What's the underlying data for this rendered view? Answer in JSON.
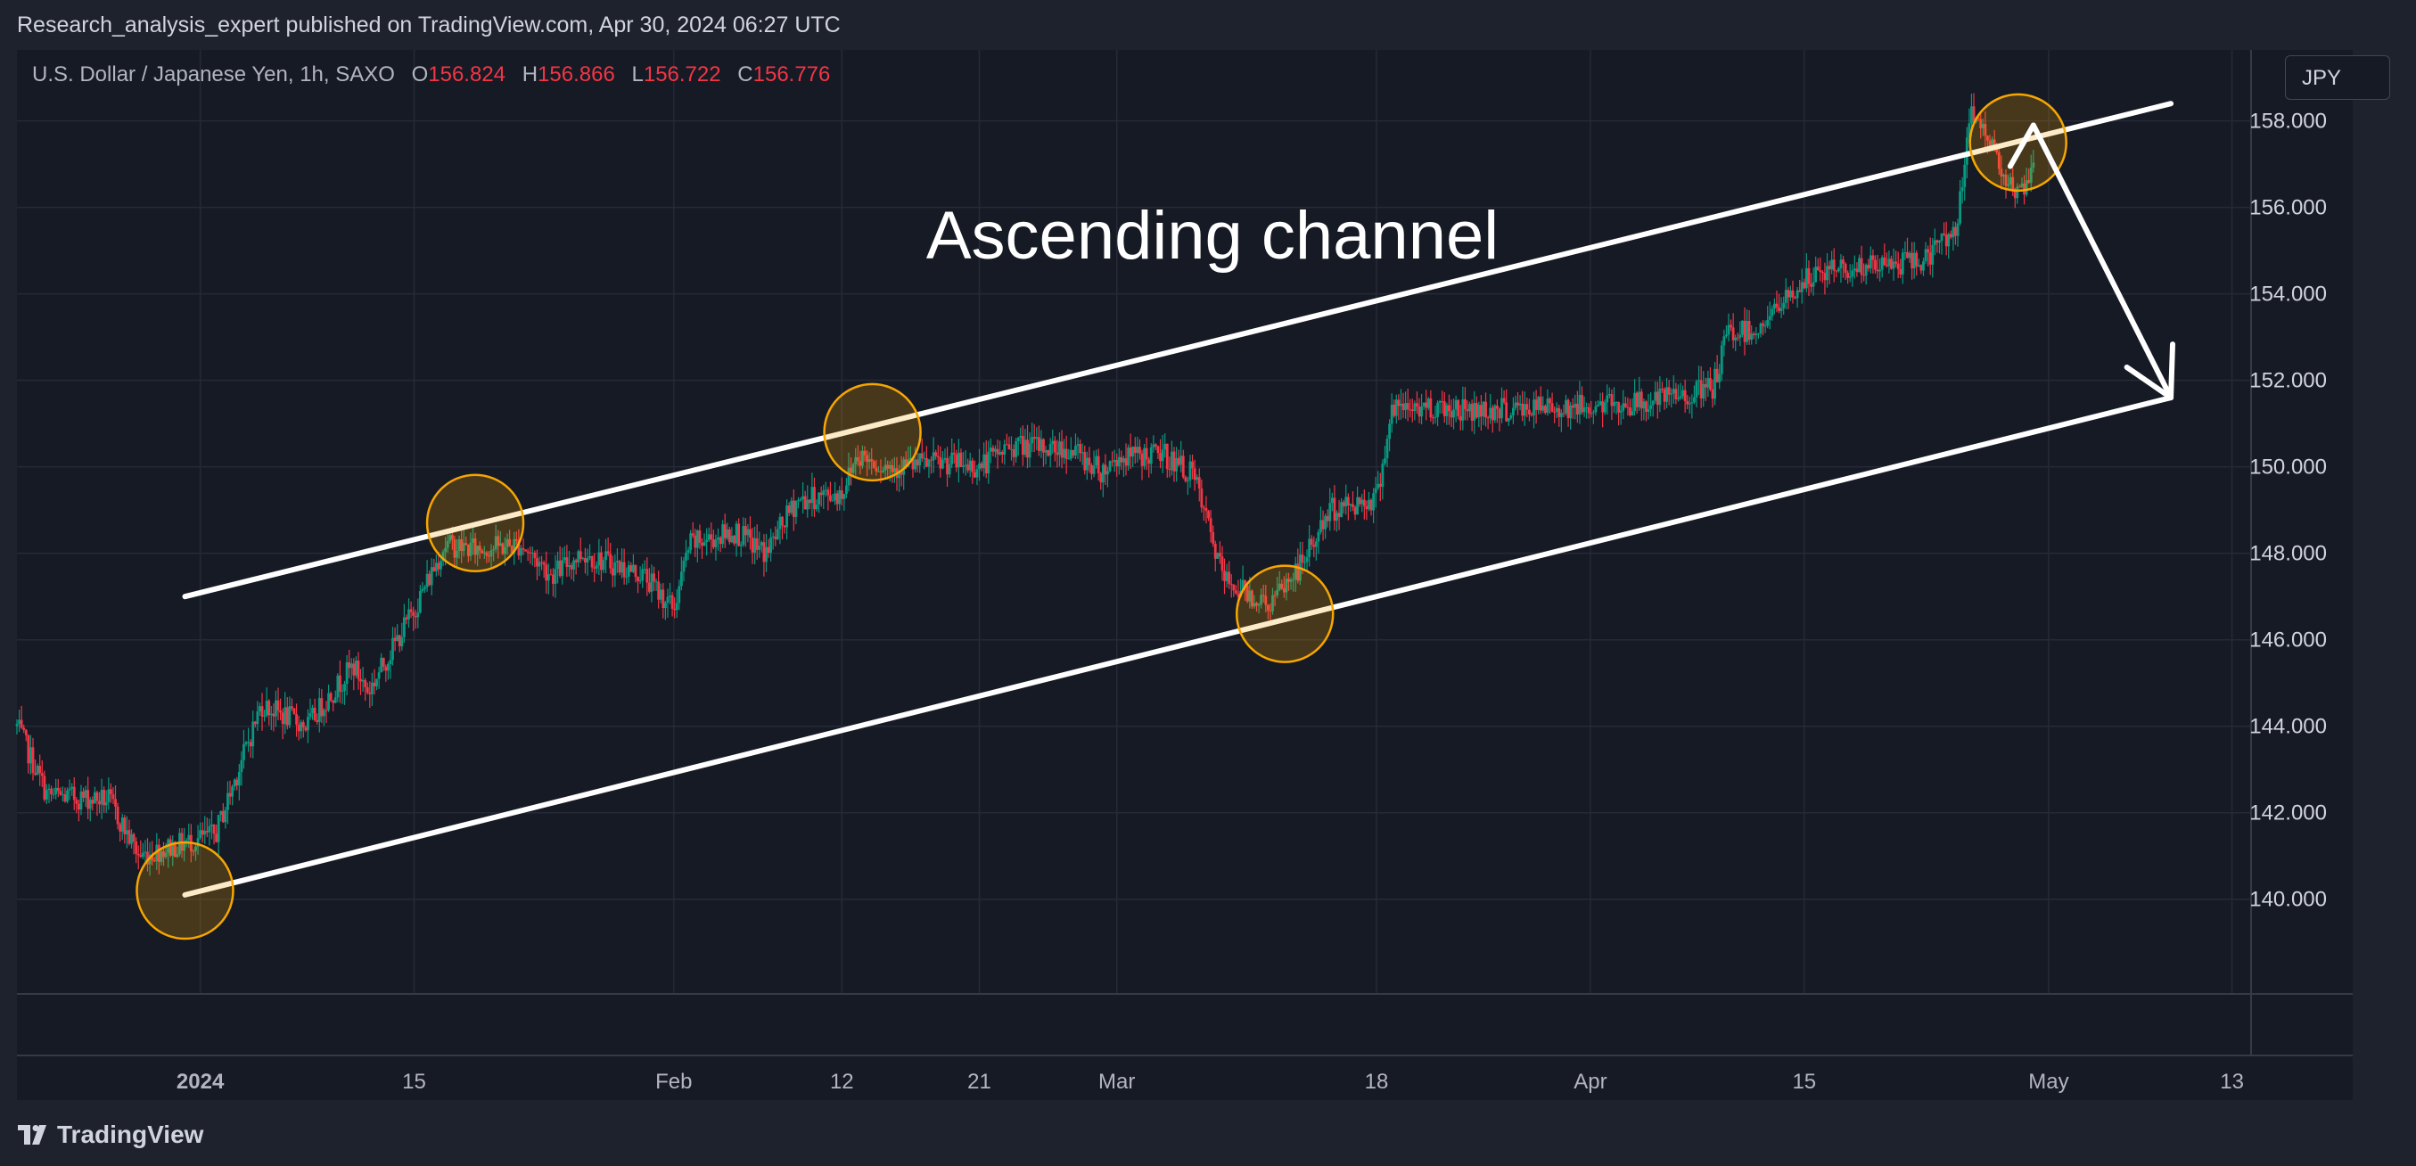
{
  "header": {
    "published_text": "Research_analysis_expert published on TradingView.com, Apr 30, 2024 06:27 UTC"
  },
  "legend": {
    "symbol": "U.S. Dollar / Japanese Yen, 1h, SAXO",
    "open_label": "O",
    "open": "156.824",
    "high_label": "H",
    "high": "156.866",
    "low_label": "L",
    "low": "156.722",
    "close_label": "C",
    "close": "156.776"
  },
  "currency_button": {
    "label": "JPY"
  },
  "footer": {
    "brand": "TradingView",
    "logo_icon": "tradingview-logo-icon"
  },
  "colors": {
    "background": "#161a25",
    "up": "#089981",
    "down": "#f23645",
    "annotation": "#ffffff",
    "circle": "#f7a600"
  },
  "chart_data": {
    "type": "candlestick",
    "title": "",
    "annotation_text": "Ascending channel",
    "y_ticks": [
      "140.000",
      "142.000",
      "144.000",
      "146.000",
      "148.000",
      "150.000",
      "152.000",
      "154.000",
      "156.000",
      "158.000"
    ],
    "y_range": [
      137.5,
      159.6
    ],
    "x_ticks": [
      {
        "label": "2024",
        "date": "2024-01-01"
      },
      {
        "label": "15",
        "date": "2024-01-15"
      },
      {
        "label": "Feb",
        "date": "2024-02-01"
      },
      {
        "label": "12",
        "date": "2024-02-12"
      },
      {
        "label": "21",
        "date": "2024-02-21"
      },
      {
        "label": "Mar",
        "date": "2024-03-01"
      },
      {
        "label": "18",
        "date": "2024-03-18"
      },
      {
        "label": "Apr",
        "date": "2024-04-01"
      },
      {
        "label": "15",
        "date": "2024-04-15"
      },
      {
        "label": "May",
        "date": "2024-05-01"
      },
      {
        "label": "13",
        "date": "2024-05-13"
      }
    ],
    "price_path": [
      [
        "2023-12-20",
        144.0
      ],
      [
        "2023-12-22",
        142.4
      ],
      [
        "2023-12-26",
        142.3
      ],
      [
        "2023-12-28",
        141.0
      ],
      [
        "2024-01-02",
        141.5
      ],
      [
        "2024-01-04",
        143.5
      ],
      [
        "2024-01-05",
        144.5
      ],
      [
        "2024-01-08",
        144.0
      ],
      [
        "2024-01-09",
        144.5
      ],
      [
        "2024-01-11",
        145.4
      ],
      [
        "2024-01-12",
        144.8
      ],
      [
        "2024-01-15",
        146.7
      ],
      [
        "2024-01-17",
        148.2
      ],
      [
        "2024-01-19",
        148.1
      ],
      [
        "2024-01-22",
        148.2
      ],
      [
        "2024-01-24",
        147.5
      ],
      [
        "2024-01-26",
        148.0
      ],
      [
        "2024-01-30",
        147.5
      ],
      [
        "2024-02-01",
        146.7
      ],
      [
        "2024-02-02",
        148.2
      ],
      [
        "2024-02-05",
        148.5
      ],
      [
        "2024-02-07",
        148.0
      ],
      [
        "2024-02-09",
        149.2
      ],
      [
        "2024-02-12",
        149.4
      ],
      [
        "2024-02-13",
        150.3
      ],
      [
        "2024-02-15",
        150.0
      ],
      [
        "2024-02-19",
        150.1
      ],
      [
        "2024-02-21",
        150.0
      ],
      [
        "2024-02-23",
        150.5
      ],
      [
        "2024-02-27",
        150.4
      ],
      [
        "2024-02-29",
        149.9
      ],
      [
        "2024-03-01",
        150.2
      ],
      [
        "2024-03-04",
        150.3
      ],
      [
        "2024-03-06",
        149.8
      ],
      [
        "2024-03-08",
        147.4
      ],
      [
        "2024-03-11",
        146.8
      ],
      [
        "2024-03-13",
        147.7
      ],
      [
        "2024-03-15",
        149.0
      ],
      [
        "2024-03-18",
        149.3
      ],
      [
        "2024-03-19",
        151.3
      ],
      [
        "2024-03-21",
        151.4
      ],
      [
        "2024-03-25",
        151.3
      ],
      [
        "2024-04-01",
        151.4
      ],
      [
        "2024-04-05",
        151.5
      ],
      [
        "2024-04-09",
        151.8
      ],
      [
        "2024-04-10",
        153.1
      ],
      [
        "2024-04-12",
        153.2
      ],
      [
        "2024-04-15",
        154.3
      ],
      [
        "2024-04-17",
        154.6
      ],
      [
        "2024-04-19",
        154.6
      ],
      [
        "2024-04-23",
        154.8
      ],
      [
        "2024-04-25",
        155.6
      ],
      [
        "2024-04-26",
        158.3
      ],
      [
        "2024-04-29",
        156.2
      ],
      [
        "2024-04-30",
        156.8
      ]
    ],
    "channel": {
      "upper_line": [
        [
          "2023-12-31",
          147.0
        ],
        [
          "2024-05-09",
          158.4
        ]
      ],
      "lower_line": [
        [
          "2023-12-31",
          140.1
        ],
        [
          "2024-05-09",
          151.6
        ]
      ]
    },
    "projection_arrow": [
      [
        "2024-04-30",
        157.9
      ],
      [
        "2024-05-09",
        151.6
      ]
    ],
    "touch_points": [
      [
        "2023-12-31",
        140.2
      ],
      [
        "2024-01-19",
        148.7
      ],
      [
        "2024-02-14",
        150.8
      ],
      [
        "2024-03-12",
        146.6
      ],
      [
        "2024-04-29",
        157.5
      ]
    ]
  }
}
